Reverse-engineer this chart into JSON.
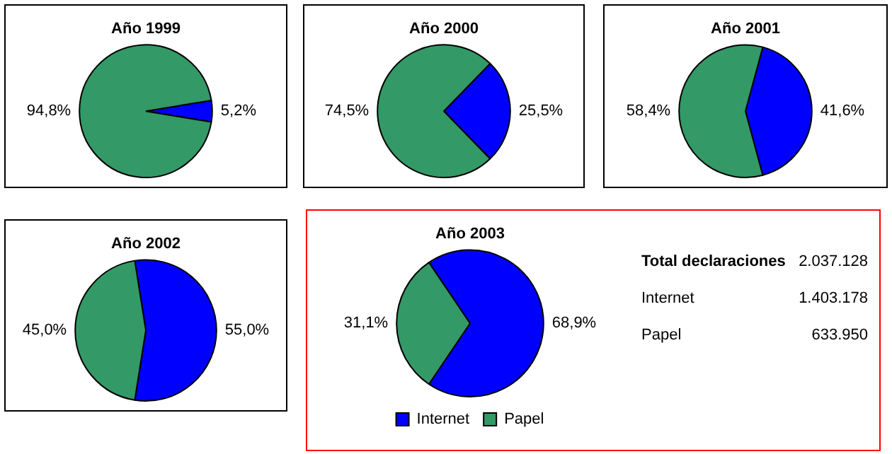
{
  "chart_data": [
    {
      "type": "pie",
      "title": "Año 1999",
      "categories": [
        null,
        null
      ],
      "values": [
        5.2,
        94.8
      ],
      "colors": [
        "#0000ff",
        "#339966"
      ],
      "value_labels": [
        "5,2%",
        "94,8%"
      ],
      "legend": false
    },
    {
      "type": "pie",
      "title": "Año 2000",
      "categories": [
        null,
        null
      ],
      "values": [
        25.5,
        74.5
      ],
      "colors": [
        "#0000ff",
        "#339966"
      ],
      "value_labels": [
        "25,5%",
        "74,5%"
      ],
      "legend": false
    },
    {
      "type": "pie",
      "title": "Año 2001",
      "categories": [
        null,
        null
      ],
      "values": [
        41.6,
        58.4
      ],
      "colors": [
        "#0000ff",
        "#339966"
      ],
      "value_labels": [
        "41,6%",
        "58,4%"
      ],
      "legend": false
    },
    {
      "type": "pie",
      "title": "Año 2002",
      "categories": [
        null,
        null
      ],
      "values": [
        55.0,
        45.0
      ],
      "colors": [
        "#0000ff",
        "#339966"
      ],
      "value_labels": [
        "55,0%",
        "45,0%"
      ],
      "legend": false
    },
    {
      "type": "pie",
      "title": "Año 2003",
      "categories": [
        "Internet",
        "Papel"
      ],
      "values": [
        68.9,
        31.1
      ],
      "colors": [
        "#0000ff",
        "#339966"
      ],
      "value_labels": [
        "68,9%",
        "31,1%"
      ],
      "legend": "bottom"
    },
    {
      "type": "other",
      "annotations": [
        "Total declaraciones",
        "2.037.128",
        "Internet",
        "1.403.178",
        "Papel",
        "633.950"
      ]
    }
  ]
}
